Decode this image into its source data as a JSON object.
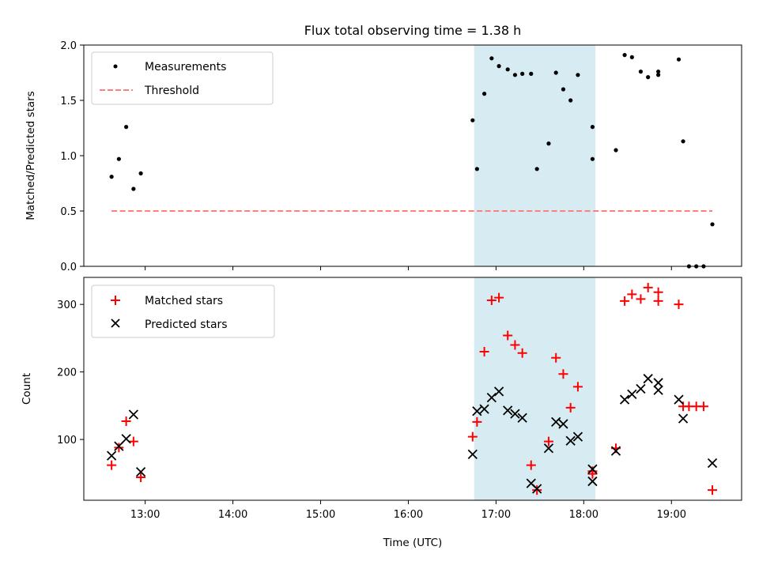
{
  "chart_data": [
    {
      "type": "scatter",
      "title": "Flux total observing time = 1.38 h",
      "xlabel": "",
      "ylabel": "Matched/Predicted stars",
      "xlim": [
        "12:18",
        "19:48"
      ],
      "ylim": [
        0,
        2.0
      ],
      "yticks": [
        0.0,
        0.5,
        1.0,
        1.5,
        2.0
      ],
      "ytick_labels": [
        "0.0",
        "0.5",
        "1.0",
        "1.5",
        "2.0"
      ],
      "shaded_interval": [
        "16:45",
        "18:08"
      ],
      "legend_position": "top-left",
      "series": [
        {
          "name": "Measurements",
          "marker": "dot",
          "color": "#000000",
          "points": [
            [
              "12:37",
              0.81
            ],
            [
              "12:42",
              0.97
            ],
            [
              "12:47",
              1.26
            ],
            [
              "12:52",
              0.7
            ],
            [
              "12:57",
              0.84
            ],
            [
              "16:44",
              1.32
            ],
            [
              "16:47",
              0.88
            ],
            [
              "16:52",
              1.56
            ],
            [
              "16:57",
              1.88
            ],
            [
              "17:02",
              1.81
            ],
            [
              "17:08",
              1.78
            ],
            [
              "17:13",
              1.73
            ],
            [
              "17:18",
              1.74
            ],
            [
              "17:24",
              1.74
            ],
            [
              "17:28",
              0.88
            ],
            [
              "17:36",
              1.11
            ],
            [
              "17:41",
              1.75
            ],
            [
              "17:46",
              1.6
            ],
            [
              "17:51",
              1.5
            ],
            [
              "17:56",
              1.73
            ],
            [
              "18:06",
              1.26
            ],
            [
              "18:06",
              0.97
            ],
            [
              "18:22",
              1.05
            ],
            [
              "18:28",
              1.91
            ],
            [
              "18:33",
              1.89
            ],
            [
              "18:39",
              1.76
            ],
            [
              "18:44",
              1.71
            ],
            [
              "18:51",
              1.73
            ],
            [
              "18:51",
              1.76
            ],
            [
              "19:05",
              1.87
            ],
            [
              "19:08",
              1.13
            ],
            [
              "19:12",
              0.0
            ],
            [
              "19:17",
              0.0
            ],
            [
              "19:22",
              0.0
            ],
            [
              "19:28",
              0.38
            ]
          ]
        },
        {
          "name": "Threshold",
          "line_style": "dashed",
          "color": "#ff7f7f",
          "points": [
            [
              "12:37",
              0.5
            ],
            [
              "19:28",
              0.5
            ]
          ]
        }
      ]
    },
    {
      "type": "scatter",
      "title": "",
      "xlabel": "Time (UTC)",
      "ylabel": "Count",
      "xlim": [
        "12:18",
        "19:48"
      ],
      "ylim": [
        10,
        340
      ],
      "yticks": [
        100,
        200,
        300
      ],
      "ytick_labels": [
        "100",
        "200",
        "300"
      ],
      "xticks": [
        "13:00",
        "14:00",
        "15:00",
        "16:00",
        "17:00",
        "18:00",
        "19:00"
      ],
      "xtick_labels": [
        "13:00",
        "14:00",
        "15:00",
        "16:00",
        "17:00",
        "18:00",
        "19:00"
      ],
      "shaded_interval": [
        "16:45",
        "18:08"
      ],
      "legend_position": "top-left",
      "series": [
        {
          "name": "Matched stars",
          "marker": "plus",
          "color": "#ff0000",
          "points": [
            [
              "12:37",
              62
            ],
            [
              "12:42",
              88
            ],
            [
              "12:47",
              127
            ],
            [
              "12:52",
              97
            ],
            [
              "12:57",
              44
            ],
            [
              "16:44",
              104
            ],
            [
              "16:47",
              126
            ],
            [
              "16:52",
              230
            ],
            [
              "16:57",
              306
            ],
            [
              "17:02",
              310
            ],
            [
              "17:08",
              254
            ],
            [
              "17:13",
              240
            ],
            [
              "17:18",
              228
            ],
            [
              "17:24",
              62
            ],
            [
              "17:28",
              25
            ],
            [
              "17:36",
              97
            ],
            [
              "17:41",
              221
            ],
            [
              "17:46",
              197
            ],
            [
              "17:51",
              147
            ],
            [
              "17:56",
              178
            ],
            [
              "18:06",
              53
            ],
            [
              "18:06",
              49
            ],
            [
              "18:22",
              87
            ],
            [
              "18:28",
              305
            ],
            [
              "18:33",
              315
            ],
            [
              "18:39",
              308
            ],
            [
              "18:44",
              325
            ],
            [
              "18:51",
              318
            ],
            [
              "18:51",
              305
            ],
            [
              "19:05",
              300
            ],
            [
              "19:08",
              149
            ],
            [
              "19:12",
              149
            ],
            [
              "19:17",
              149
            ],
            [
              "19:22",
              149
            ],
            [
              "19:28",
              25
            ]
          ]
        },
        {
          "name": "Predicted stars",
          "marker": "x",
          "color": "#000000",
          "points": [
            [
              "12:37",
              76
            ],
            [
              "12:42",
              90
            ],
            [
              "12:47",
              101
            ],
            [
              "12:52",
              137
            ],
            [
              "12:57",
              52
            ],
            [
              "16:44",
              78
            ],
            [
              "16:47",
              142
            ],
            [
              "16:52",
              145
            ],
            [
              "16:57",
              162
            ],
            [
              "17:02",
              171
            ],
            [
              "17:08",
              143
            ],
            [
              "17:13",
              138
            ],
            [
              "17:18",
              132
            ],
            [
              "17:24",
              35
            ],
            [
              "17:28",
              27
            ],
            [
              "17:36",
              87
            ],
            [
              "17:41",
              126
            ],
            [
              "17:46",
              123
            ],
            [
              "17:51",
              98
            ],
            [
              "17:56",
              104
            ],
            [
              "18:06",
              56
            ],
            [
              "18:06",
              38
            ],
            [
              "18:22",
              83
            ],
            [
              "18:28",
              159
            ],
            [
              "18:33",
              167
            ],
            [
              "18:39",
              175
            ],
            [
              "18:44",
              190
            ],
            [
              "18:51",
              184
            ],
            [
              "18:51",
              173
            ],
            [
              "19:05",
              159
            ],
            [
              "19:08",
              131
            ],
            [
              "19:28",
              65
            ]
          ]
        }
      ]
    }
  ]
}
